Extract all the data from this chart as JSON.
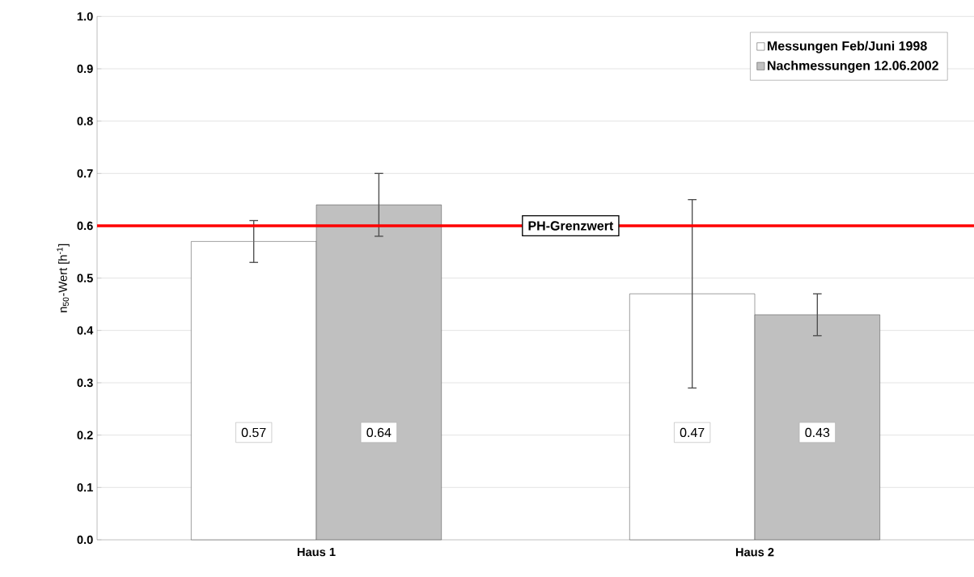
{
  "chart_data": {
    "type": "bar",
    "ylabel": "n$_{50}$-Wert [h$^{-1}$]",
    "categories": [
      "Haus 1",
      "Haus 2"
    ],
    "series": [
      {
        "name": "Messungen Feb/Juni 1998",
        "color": "#ffffff",
        "values": [
          0.57,
          0.47
        ],
        "errors": [
          [
            0.53,
            0.61
          ],
          [
            0.29,
            0.65
          ]
        ]
      },
      {
        "name": "Nachmessungen 12.06.2002",
        "color": "#c0c0c0",
        "values": [
          0.64,
          0.43
        ],
        "errors": [
          [
            0.58,
            0.7
          ],
          [
            0.39,
            0.47
          ]
        ]
      }
    ],
    "ylim": [
      0,
      1
    ],
    "yticks": [
      {
        "value": 0,
        "label": "0.0"
      },
      0.1,
      0.2,
      0.3,
      0.4,
      0.5,
      0.6,
      0.7,
      0.8,
      0.9,
      {
        "value": 1,
        "label": "1.0"
      }
    ],
    "ref_lines": [
      {
        "axis": "y",
        "value": 0.6,
        "label": "PH-Grenzwert",
        "color": "#ff0000"
      }
    ],
    "grid": "y",
    "legend": "top right",
    "data_labels": true,
    "marker": "square"
  }
}
